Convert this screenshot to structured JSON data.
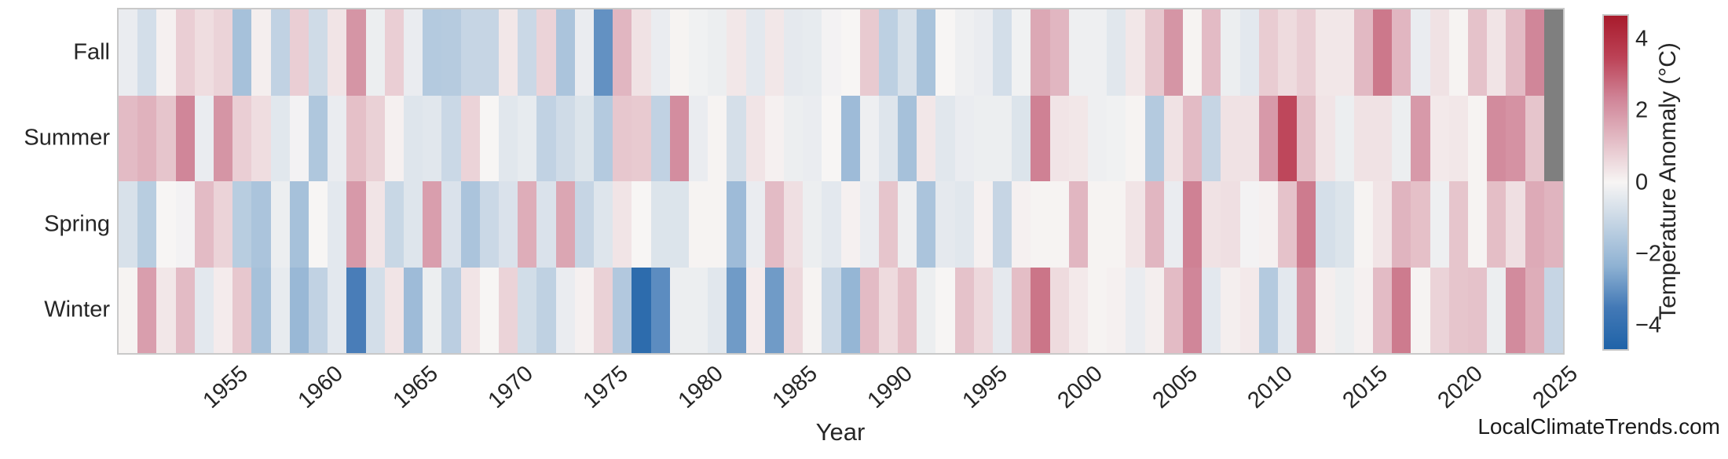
{
  "watermark": "LocalClimateTrends.com",
  "chart_data": {
    "type": "heatmap",
    "title": "",
    "xlabel": "Year",
    "ylabel": "",
    "colorbar_label": "Temperature Anomaly (°C)",
    "colorbar_ticks": [
      "4",
      "2",
      "0",
      "−2",
      "−4"
    ],
    "colorbar_tick_values": [
      4,
      2,
      0,
      -2,
      -4
    ],
    "vmin": -4.65,
    "vmax": 4.65,
    "legend_position": "right-colorbar",
    "grid": false,
    "rows": [
      "Fall",
      "Summer",
      "Spring",
      "Winter"
    ],
    "x_ticks": [
      1955,
      1960,
      1965,
      1970,
      1975,
      1980,
      1985,
      1990,
      1995,
      2000,
      2005,
      2010,
      2015,
      2020,
      2025
    ],
    "year_start": 1950,
    "year_end": 2025,
    "years": [
      1950,
      1951,
      1952,
      1953,
      1954,
      1955,
      1956,
      1957,
      1958,
      1959,
      1960,
      1961,
      1962,
      1963,
      1964,
      1965,
      1966,
      1967,
      1968,
      1969,
      1970,
      1971,
      1972,
      1973,
      1974,
      1975,
      1976,
      1977,
      1978,
      1979,
      1980,
      1981,
      1982,
      1983,
      1984,
      1985,
      1986,
      1987,
      1988,
      1989,
      1990,
      1991,
      1992,
      1993,
      1994,
      1995,
      1996,
      1997,
      1998,
      1999,
      2000,
      2001,
      2002,
      2003,
      2004,
      2005,
      2006,
      2007,
      2008,
      2009,
      2010,
      2011,
      2012,
      2013,
      2014,
      2015,
      2016,
      2017,
      2018,
      2019,
      2020,
      2021,
      2022,
      2023,
      2024,
      2025
    ],
    "series": [
      {
        "name": "Fall",
        "values": [
          -0.3,
          -0.8,
          0.1,
          0.8,
          0.5,
          0.7,
          -1.8,
          0.15,
          -1.2,
          0.8,
          -0.9,
          0.35,
          2.0,
          -0.25,
          0.8,
          -0.3,
          -1.5,
          -1.45,
          -1.1,
          -1.1,
          0.3,
          -1.0,
          0.7,
          -1.7,
          -0.3,
          -3.0,
          1.3,
          0.4,
          -0.3,
          0.05,
          -0.15,
          -0.25,
          0.3,
          -0.45,
          0.3,
          -0.4,
          -0.35,
          -0.1,
          0.0,
          0.9,
          -1.3,
          -0.7,
          -1.75,
          0.0,
          -0.2,
          -0.3,
          -0.8,
          -0.15,
          1.6,
          1.3,
          -0.2,
          -0.2,
          -0.5,
          0.3,
          0.95,
          2.0,
          0.05,
          1.2,
          -0.25,
          -0.45,
          0.85,
          0.55,
          0.8,
          0.3,
          0.3,
          1.25,
          2.55,
          1.3,
          -0.3,
          0.4,
          0.05,
          1.05,
          0.35,
          1.2,
          2.3,
          null
        ]
      },
      {
        "name": "Summer",
        "values": [
          1.2,
          1.4,
          1.0,
          2.3,
          -0.3,
          2.0,
          0.8,
          0.5,
          -0.5,
          -0.1,
          -1.6,
          -0.3,
          1.1,
          0.75,
          0.1,
          -0.55,
          -0.5,
          -1.0,
          0.7,
          0.0,
          -0.5,
          -0.35,
          -1.2,
          -0.9,
          -0.6,
          -1.5,
          0.95,
          0.9,
          -1.2,
          2.15,
          -0.3,
          0.05,
          -0.75,
          0.35,
          0.1,
          -0.25,
          -0.3,
          0.0,
          -2.0,
          -0.2,
          -0.55,
          -1.8,
          0.3,
          -0.5,
          -0.3,
          -0.25,
          -0.25,
          -0.6,
          2.4,
          0.35,
          0.3,
          -0.2,
          -0.15,
          0.05,
          -1.5,
          0.4,
          1.2,
          -1.1,
          0.4,
          0.4,
          1.9,
          3.4,
          1.15,
          0.35,
          -0.25,
          0.4,
          0.4,
          -0.25,
          1.9,
          0.25,
          0.3,
          0.05,
          2.2,
          2.05,
          1.0,
          null
        ]
      },
      {
        "name": "Spring",
        "values": [
          -0.7,
          -1.4,
          0.0,
          -0.1,
          1.2,
          0.7,
          -1.4,
          -1.7,
          -0.25,
          -1.8,
          0.0,
          -0.45,
          1.9,
          0.35,
          -1.05,
          -0.55,
          1.8,
          -0.65,
          -1.7,
          -1.0,
          -0.65,
          1.5,
          -0.65,
          1.65,
          -1.1,
          -0.55,
          0.35,
          0.0,
          -0.6,
          -0.6,
          0.05,
          0.05,
          -2.0,
          -0.3,
          1.2,
          0.45,
          -0.25,
          -0.45,
          0.1,
          -0.3,
          1.0,
          -0.2,
          -1.7,
          -0.4,
          -0.5,
          0.1,
          -1.1,
          0.1,
          0.05,
          0.05,
          1.3,
          0.05,
          0.05,
          0.35,
          1.3,
          -0.3,
          2.4,
          0.4,
          0.45,
          -0.1,
          0.1,
          1.05,
          2.5,
          -0.75,
          -0.6,
          0.05,
          0.35,
          1.35,
          1.1,
          -0.2,
          1.0,
          0.05,
          1.15,
          0.45,
          1.55,
          1.35
        ]
      },
      {
        "name": "Winter",
        "values": [
          0.05,
          1.8,
          0.3,
          1.2,
          -0.45,
          0.2,
          0.95,
          -1.8,
          -0.35,
          -2.1,
          -1.2,
          -0.45,
          -3.4,
          -0.8,
          0.35,
          -2.0,
          -0.25,
          -1.35,
          0.35,
          0.0,
          0.7,
          -0.85,
          -1.25,
          -0.3,
          0.1,
          0.75,
          -1.55,
          -4.2,
          -3.1,
          -0.25,
          -0.25,
          -0.5,
          -2.8,
          0.2,
          -2.8,
          0.6,
          0.05,
          -1.0,
          -2.2,
          1.2,
          0.55,
          1.1,
          -0.25,
          0.0,
          1.05,
          0.6,
          -0.4,
          1.15,
          2.6,
          0.55,
          0.25,
          0.05,
          0.1,
          -0.3,
          0.15,
          1.2,
          2.3,
          -0.45,
          0.15,
          0.25,
          -1.5,
          -0.45,
          2.0,
          0.15,
          -0.25,
          0.1,
          1.2,
          2.5,
          0.05,
          0.7,
          1.0,
          1.05,
          -0.25,
          2.2,
          1.5,
          -1.1
        ]
      }
    ],
    "colors": {
      "nan": "#7f7f7f",
      "stops": [
        {
          "t": 0.0,
          "color": "#1f63a8"
        },
        {
          "t": 0.125,
          "color": "#4379b6"
        },
        {
          "t": 0.25,
          "color": "#8fb2d3"
        },
        {
          "t": 0.5,
          "color": "#f7f5f4"
        },
        {
          "t": 0.75,
          "color": "#d08598"
        },
        {
          "t": 0.875,
          "color": "#bc4256"
        },
        {
          "t": 1.0,
          "color": "#a81b2c"
        }
      ]
    }
  }
}
